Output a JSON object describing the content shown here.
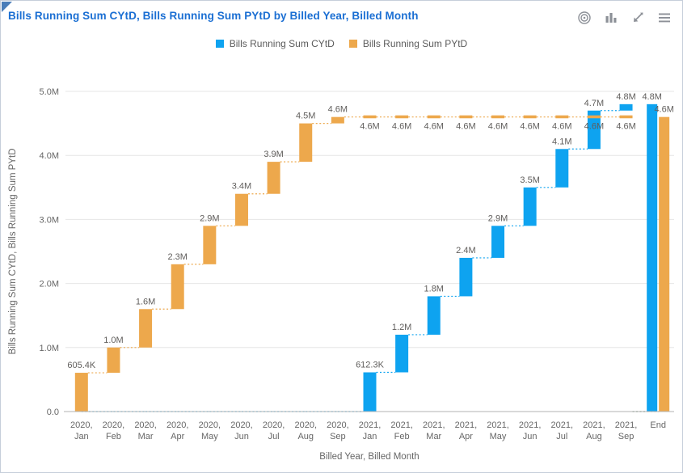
{
  "card": {
    "title": "Bills Running Sum CYtD, Bills Running Sum PYtD by Billed Year, Billed Month"
  },
  "toolbar": {
    "icons": [
      "target-icon",
      "bar-chart-icon",
      "collapse-arrows-icon",
      "hamburger-menu-icon"
    ]
  },
  "legend": {
    "items": [
      {
        "label": "Bills Running Sum CYtD",
        "color": "#0EA3F0"
      },
      {
        "label": "Bills Running Sum PYtD",
        "color": "#EDA84C"
      }
    ]
  },
  "chart_data": {
    "type": "waterfall",
    "title": "Bills Running Sum CYtD, Bills Running Sum PYtD by Billed Year, Billed Month",
    "xlabel": "Billed Year, Billed Month",
    "ylabel": "Bills Running Sum CYtD, Bills Running Sum PYtD",
    "ylim": [
      0,
      5000000
    ],
    "grid": true,
    "legend_position": "top",
    "y_ticks": [
      {
        "value": 0,
        "label": "0.0"
      },
      {
        "value": 1000000,
        "label": "1.0M"
      },
      {
        "value": 2000000,
        "label": "2.0M"
      },
      {
        "value": 3000000,
        "label": "3.0M"
      },
      {
        "value": 4000000,
        "label": "4.0M"
      },
      {
        "value": 5000000,
        "label": "5.0M"
      }
    ],
    "series_meta": [
      {
        "key": "cytd",
        "name": "Bills Running Sum CYtD",
        "color": "#0EA3F0"
      },
      {
        "key": "pytd",
        "name": "Bills Running Sum PYtD",
        "color": "#EDA84C"
      }
    ],
    "columns": [
      {
        "cat": [
          "2020,",
          "Jan"
        ],
        "pytd": {
          "from": 0,
          "to": 605400,
          "label": "605.4K"
        },
        "cytd": {
          "from": 0,
          "to": 0
        }
      },
      {
        "cat": [
          "2020,",
          "Feb"
        ],
        "pytd": {
          "from": 605400,
          "to": 1000000,
          "label": "1.0M"
        },
        "cytd": {
          "from": 0,
          "to": 0
        }
      },
      {
        "cat": [
          "2020,",
          "Mar"
        ],
        "pytd": {
          "from": 1000000,
          "to": 1600000,
          "label": "1.6M"
        },
        "cytd": {
          "from": 0,
          "to": 0
        }
      },
      {
        "cat": [
          "2020,",
          "Apr"
        ],
        "pytd": {
          "from": 1600000,
          "to": 2300000,
          "label": "2.3M"
        },
        "cytd": {
          "from": 0,
          "to": 0
        }
      },
      {
        "cat": [
          "2020,",
          "May"
        ],
        "pytd": {
          "from": 2300000,
          "to": 2900000,
          "label": "2.9M"
        },
        "cytd": {
          "from": 0,
          "to": 0
        }
      },
      {
        "cat": [
          "2020,",
          "Jun"
        ],
        "pytd": {
          "from": 2900000,
          "to": 3400000,
          "label": "3.4M"
        },
        "cytd": {
          "from": 0,
          "to": 0
        }
      },
      {
        "cat": [
          "2020,",
          "Jul"
        ],
        "pytd": {
          "from": 3400000,
          "to": 3900000,
          "label": "3.9M"
        },
        "cytd": {
          "from": 0,
          "to": 0
        }
      },
      {
        "cat": [
          "2020,",
          "Aug"
        ],
        "pytd": {
          "from": 3900000,
          "to": 4500000,
          "label": "4.5M"
        },
        "cytd": {
          "from": 0,
          "to": 0
        }
      },
      {
        "cat": [
          "2020,",
          "Sep"
        ],
        "pytd": {
          "from": 4500000,
          "to": 4600000,
          "label": "4.6M"
        },
        "cytd": {
          "from": 0,
          "to": 0
        }
      },
      {
        "cat": [
          "2021,",
          "Jan"
        ],
        "cytd": {
          "from": 0,
          "to": 612300,
          "label": "612.3K"
        },
        "pytd": {
          "from": 4600000,
          "to": 4600000,
          "label": "4.6M",
          "flat": true,
          "below": true
        }
      },
      {
        "cat": [
          "2021,",
          "Feb"
        ],
        "cytd": {
          "from": 612300,
          "to": 1200000,
          "label": "1.2M"
        },
        "pytd": {
          "from": 4600000,
          "to": 4600000,
          "label": "4.6M",
          "flat": true,
          "below": true
        }
      },
      {
        "cat": [
          "2021,",
          "Mar"
        ],
        "cytd": {
          "from": 1200000,
          "to": 1800000,
          "label": "1.8M"
        },
        "pytd": {
          "from": 4600000,
          "to": 4600000,
          "label": "4.6M",
          "flat": true,
          "below": true
        }
      },
      {
        "cat": [
          "2021,",
          "Apr"
        ],
        "cytd": {
          "from": 1800000,
          "to": 2400000,
          "label": "2.4M"
        },
        "pytd": {
          "from": 4600000,
          "to": 4600000,
          "label": "4.6M",
          "flat": true,
          "below": true
        }
      },
      {
        "cat": [
          "2021,",
          "May"
        ],
        "cytd": {
          "from": 2400000,
          "to": 2900000,
          "label": "2.9M"
        },
        "pytd": {
          "from": 4600000,
          "to": 4600000,
          "label": "4.6M",
          "flat": true,
          "below": true
        }
      },
      {
        "cat": [
          "2021,",
          "Jun"
        ],
        "cytd": {
          "from": 2900000,
          "to": 3500000,
          "label": "3.5M"
        },
        "pytd": {
          "from": 4600000,
          "to": 4600000,
          "label": "4.6M",
          "flat": true,
          "below": true
        }
      },
      {
        "cat": [
          "2021,",
          "Jul"
        ],
        "cytd": {
          "from": 3500000,
          "to": 4100000,
          "label": "4.1M"
        },
        "pytd": {
          "from": 4600000,
          "to": 4600000,
          "label": "4.6M",
          "flat": true,
          "below": true
        }
      },
      {
        "cat": [
          "2021,",
          "Aug"
        ],
        "cytd": {
          "from": 4100000,
          "to": 4700000,
          "label": "4.7M"
        },
        "pytd": {
          "from": 4600000,
          "to": 4600000,
          "label": "4.6M",
          "flat": true,
          "below": true
        }
      },
      {
        "cat": [
          "2021,",
          "Sep"
        ],
        "cytd": {
          "from": 4700000,
          "to": 4800000,
          "label": "4.8M"
        },
        "pytd": {
          "from": 4600000,
          "to": 4600000,
          "label": "4.6M",
          "flat": true,
          "below": true
        }
      },
      {
        "cat": [
          "End",
          ""
        ],
        "cytd": {
          "from": 0,
          "to": 4800000,
          "label": "4.8M",
          "total": true
        },
        "pytd": {
          "from": 0,
          "to": 4600000,
          "label": "4.6M",
          "total": true
        }
      }
    ]
  }
}
